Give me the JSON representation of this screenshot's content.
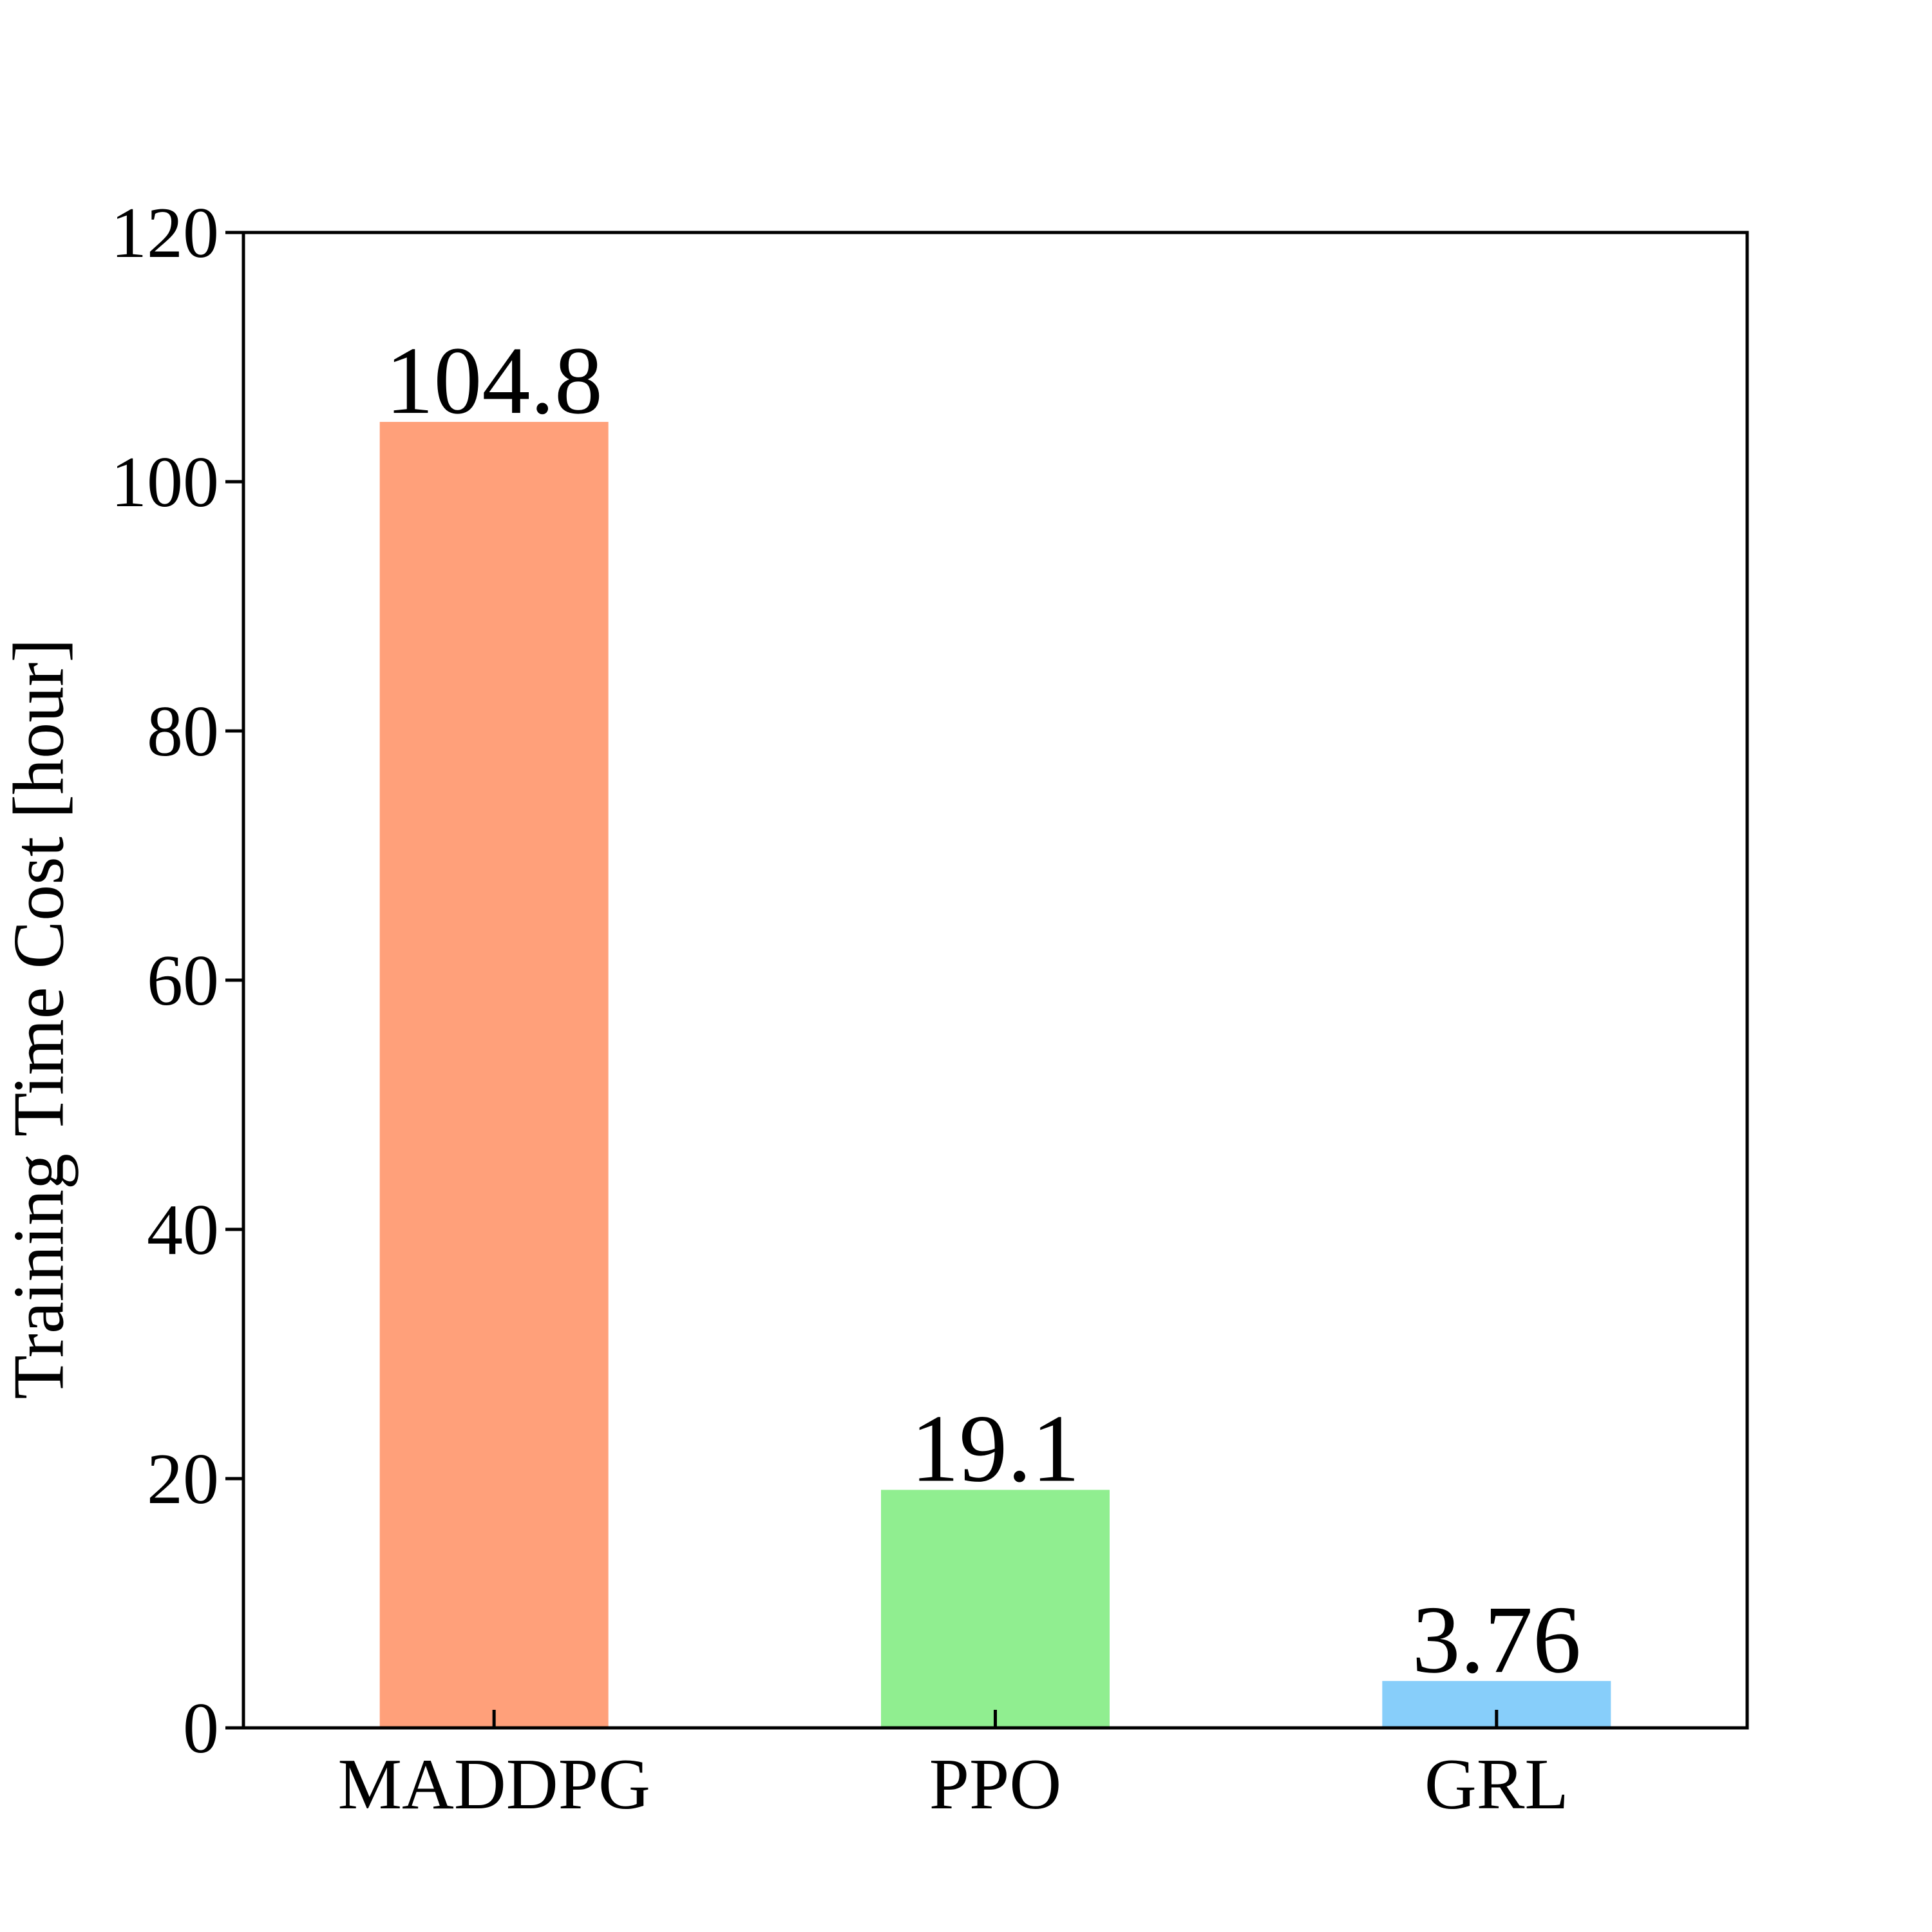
{
  "chart_data": {
    "type": "bar",
    "categories": [
      "MADDPG",
      "PPO",
      "GRL"
    ],
    "values": [
      104.8,
      19.1,
      3.76
    ],
    "data_labels": [
      "104.8",
      "19.1",
      "3.76"
    ],
    "colors": [
      "#FFA07A",
      "#90EE90",
      "#87CEFA"
    ],
    "title": "",
    "xlabel": "",
    "ylabel": "Training Time Cost  [hour]",
    "ylim": [
      0,
      120
    ],
    "yticks": [
      0,
      20,
      40,
      60,
      80,
      100,
      120
    ],
    "grid": false,
    "legend": "none"
  }
}
